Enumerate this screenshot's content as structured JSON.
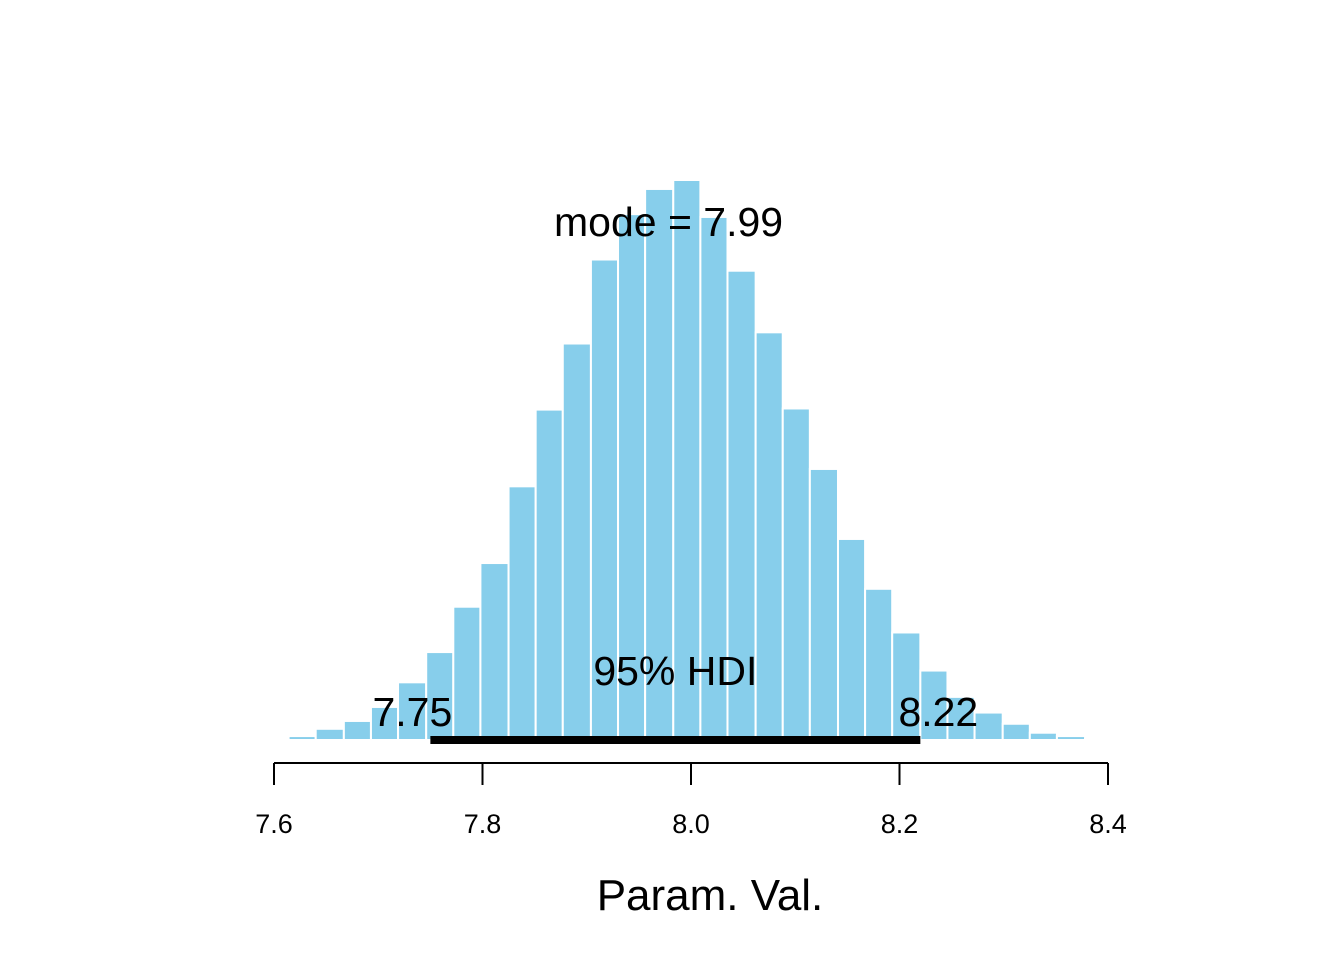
{
  "chart_data": {
    "type": "bar",
    "subtype": "histogram",
    "title": "",
    "xlabel": "Param. Val.",
    "ylabel": "",
    "xlim": [
      7.6,
      8.4
    ],
    "x_ticks": [
      7.6,
      7.8,
      8.0,
      8.2,
      8.4
    ],
    "x_tick_labels": [
      "7.6",
      "7.8",
      "8.0",
      "8.2",
      "8.4"
    ],
    "bin_width": 0.0263,
    "bins": [
      {
        "x0": 7.614,
        "x1": 7.64,
        "count": 0.007
      },
      {
        "x0": 7.64,
        "x1": 7.667,
        "count": 0.02
      },
      {
        "x0": 7.667,
        "x1": 7.693,
        "count": 0.034
      },
      {
        "x0": 7.693,
        "x1": 7.719,
        "count": 0.059
      },
      {
        "x0": 7.719,
        "x1": 7.746,
        "count": 0.103
      },
      {
        "x0": 7.746,
        "x1": 7.772,
        "count": 0.157
      },
      {
        "x0": 7.772,
        "x1": 7.798,
        "count": 0.238
      },
      {
        "x0": 7.798,
        "x1": 7.825,
        "count": 0.316
      },
      {
        "x0": 7.825,
        "x1": 7.851,
        "count": 0.453
      },
      {
        "x0": 7.851,
        "x1": 7.877,
        "count": 0.59
      },
      {
        "x0": 7.877,
        "x1": 7.904,
        "count": 0.708
      },
      {
        "x0": 7.904,
        "x1": 7.93,
        "count": 0.858
      },
      {
        "x0": 7.93,
        "x1": 7.956,
        "count": 0.939
      },
      {
        "x0": 7.956,
        "x1": 7.983,
        "count": 0.984
      },
      {
        "x0": 7.983,
        "x1": 8.009,
        "count": 1.0
      },
      {
        "x0": 8.009,
        "x1": 8.035,
        "count": 0.934
      },
      {
        "x0": 8.035,
        "x1": 8.062,
        "count": 0.838
      },
      {
        "x0": 8.062,
        "x1": 8.088,
        "count": 0.728
      },
      {
        "x0": 8.088,
        "x1": 8.114,
        "count": 0.592
      },
      {
        "x0": 8.114,
        "x1": 8.141,
        "count": 0.484
      },
      {
        "x0": 8.141,
        "x1": 8.167,
        "count": 0.359
      },
      {
        "x0": 8.167,
        "x1": 8.193,
        "count": 0.27
      },
      {
        "x0": 8.193,
        "x1": 8.22,
        "count": 0.192
      },
      {
        "x0": 8.22,
        "x1": 8.246,
        "count": 0.124
      },
      {
        "x0": 8.246,
        "x1": 8.272,
        "count": 0.077
      },
      {
        "x0": 8.272,
        "x1": 8.299,
        "count": 0.049
      },
      {
        "x0": 8.299,
        "x1": 8.325,
        "count": 0.029
      },
      {
        "x0": 8.325,
        "x1": 8.351,
        "count": 0.013
      },
      {
        "x0": 8.351,
        "x1": 8.378,
        "count": 0.007
      },
      {
        "x0": 8.378,
        "x1": 8.404,
        "count": 0.002
      }
    ],
    "bar_color": "#87CEEB",
    "bar_border_color": "#FFFFFF",
    "mode": {
      "value": 7.99,
      "label": "mode = 7.99"
    },
    "hdi": {
      "low": 7.75,
      "high": 8.22,
      "label": "95% HDI",
      "low_label": "7.75",
      "high_label": "8.22"
    },
    "y_axis_shown": false,
    "grid": false
  }
}
